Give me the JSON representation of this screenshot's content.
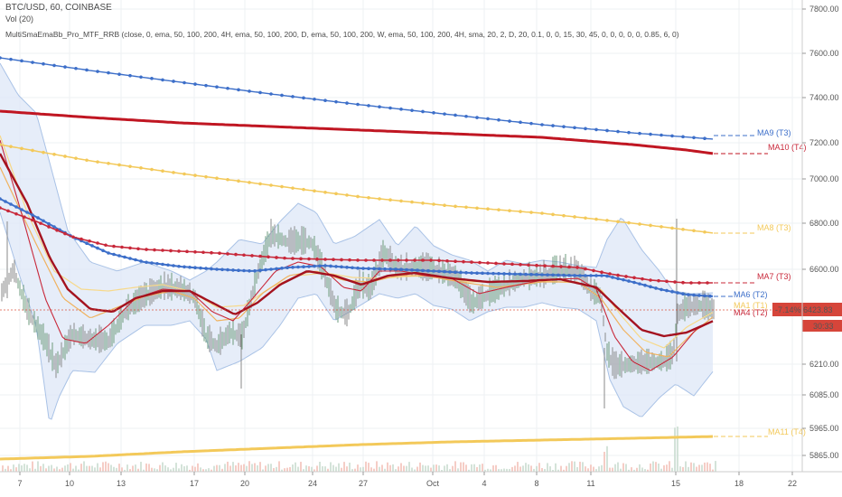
{
  "header": {
    "symbol": "BTC/USD, 60, COINBASE",
    "volume": "Vol (20)",
    "indicator": "MultiSmaEmaBb_Pro_MTF_RRB (close, 0, ema, 50, 100, 200, 4H, ema, 50, 100, 200, D, ema, 50, 100, 200, W, ema, 50, 100, 200, 4H, sma, 20, 2, D, 20, 0.1, 0, 0, 15, 30, 45, 0, 0, 0, 0, 0, 0.85, 6, 0)"
  },
  "colors": {
    "blue": "#3d6fc9",
    "dark_red": "#a4121f",
    "red": "#c8283a",
    "gold": "#f3c95a",
    "pale_gold": "#f7d98a",
    "bb_fill": "#dbe6f6",
    "bb_line": "#a9c2e6",
    "price_line": "#d94b37",
    "candle": "#7a7a7a"
  },
  "chart_data": {
    "type": "line",
    "title": "BTC/USD, 60, COINBASE",
    "y_ticks": [
      "7800.00",
      "7600.00",
      "7400.00",
      "7200.00",
      "7000.00",
      "6800.00",
      "6600.00",
      "6210.00",
      "6085.00",
      "5965.00",
      "5865.00"
    ],
    "x_ticks": [
      "7",
      "10",
      "13",
      "17",
      "20",
      "24",
      "27",
      "Oct",
      "4",
      "8",
      "11",
      "15",
      "18",
      "22"
    ],
    "ylim": [
      5865,
      7800
    ],
    "ma_labels": [
      {
        "name": "MA9 (T3)",
        "color": "#3d6fc9"
      },
      {
        "name": "MA10 (T4)",
        "color": "#c8283a"
      },
      {
        "name": "MA8 (T3)",
        "color": "#f3c95a"
      },
      {
        "name": "MA7 (T3)",
        "color": "#c8283a"
      },
      {
        "name": "MA6 (T2)",
        "color": "#3d6fc9"
      },
      {
        "name": "MA11 (T4)",
        "color": "#f3c95a"
      }
    ],
    "price_label": "-7.14% 6423.83",
    "time_label": "30:33",
    "series": [
      {
        "name": "MA9 (T3)",
        "x": [
          0,
          20
        ],
        "values": [
          7560,
          7175
        ]
      },
      {
        "name": "MA10 (T4)",
        "x": [
          0,
          20
        ],
        "values": [
          7300,
          7110
        ]
      },
      {
        "name": "MA8 (T3)",
        "x": [
          0,
          20
        ],
        "values": [
          7140,
          6755
        ]
      },
      {
        "name": "MA7 (T3)",
        "x": [
          0,
          5,
          10,
          15,
          20
        ],
        "values": [
          6800,
          6610,
          6605,
          6570,
          6530
        ]
      },
      {
        "name": "MA6 (T2)",
        "x": [
          0,
          5,
          10,
          15,
          20
        ],
        "values": [
          6890,
          6590,
          6600,
          6560,
          6470
        ]
      },
      {
        "name": "MA11 (T4)",
        "x": [
          0,
          20
        ],
        "values": [
          5890,
          5940
        ]
      }
    ]
  }
}
